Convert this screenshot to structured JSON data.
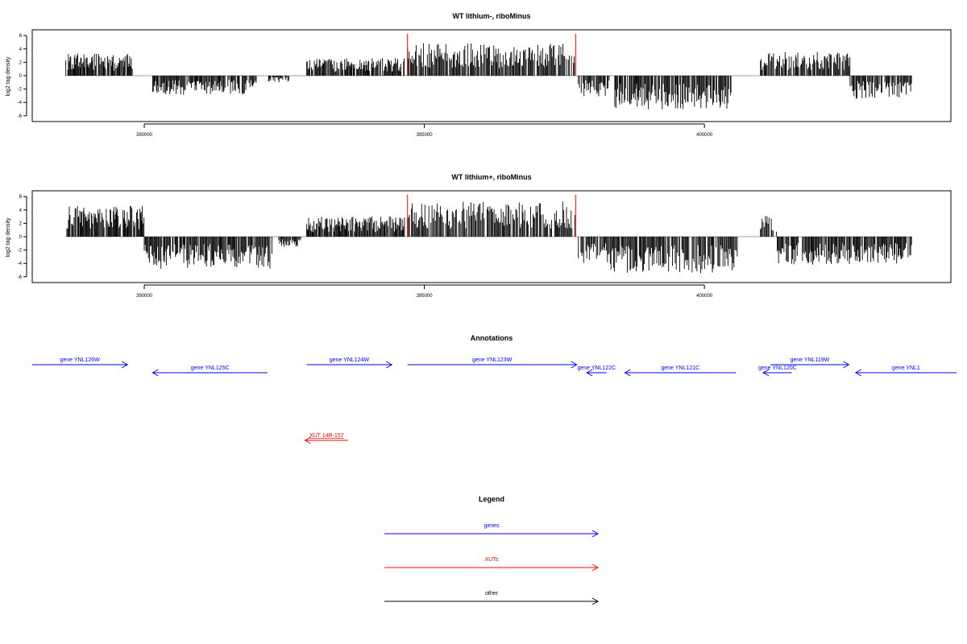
{
  "colors": {
    "gene": "#0000ff",
    "xut": "#ff0000",
    "other": "#000000",
    "bar": "#000000",
    "boundary": "#ff0000",
    "baseline": "#a0a0a0"
  },
  "chart_data": [
    {
      "type": "bar",
      "title": "WT lithium-, riboMinus",
      "ylabel": "log2 tag density",
      "xlim": [
        388000,
        404400
      ],
      "ylim": [
        -6.5,
        6.5
      ],
      "xticks": [
        390000,
        395000,
        400000
      ],
      "yticks": [
        -6,
        -4,
        -2,
        0,
        2,
        4,
        6
      ],
      "grid": false,
      "boundaries": [
        394700,
        397700
      ],
      "segments": [
        {
          "start": 388600,
          "end": 389800,
          "sign": 1,
          "amp": 3.0
        },
        {
          "start": 390150,
          "end": 392000,
          "sign": -1,
          "amp": 2.6
        },
        {
          "start": 392200,
          "end": 392600,
          "sign": -1,
          "amp": 0.9
        },
        {
          "start": 392900,
          "end": 394650,
          "sign": 1,
          "amp": 2.4
        },
        {
          "start": 394700,
          "end": 397700,
          "sign": 1,
          "amp": 4.5
        },
        {
          "start": 397750,
          "end": 398300,
          "sign": -1,
          "amp": 2.8
        },
        {
          "start": 398400,
          "end": 400500,
          "sign": -1,
          "amp": 4.6
        },
        {
          "start": 401000,
          "end": 402600,
          "sign": 1,
          "amp": 3.3
        },
        {
          "start": 402600,
          "end": 403700,
          "sign": -1,
          "amp": 3.2
        }
      ]
    },
    {
      "type": "bar",
      "title": "WT lithium+, riboMinus",
      "ylabel": "log2 tag density",
      "xlim": [
        388000,
        404400
      ],
      "ylim": [
        -6.5,
        6.5
      ],
      "xticks": [
        390000,
        395000,
        400000
      ],
      "yticks": [
        -6,
        -4,
        -2,
        0,
        2,
        4,
        6
      ],
      "grid": false,
      "boundaries": [
        394700,
        397700
      ],
      "segments": [
        {
          "start": 388600,
          "end": 390000,
          "sign": 1,
          "amp": 4.2
        },
        {
          "start": 390000,
          "end": 392300,
          "sign": -1,
          "amp": 4.4
        },
        {
          "start": 392400,
          "end": 392800,
          "sign": -1,
          "amp": 1.4
        },
        {
          "start": 392900,
          "end": 394650,
          "sign": 1,
          "amp": 2.8
        },
        {
          "start": 394700,
          "end": 397700,
          "sign": 1,
          "amp": 4.8
        },
        {
          "start": 397750,
          "end": 398300,
          "sign": -1,
          "amp": 3.6
        },
        {
          "start": 398300,
          "end": 400600,
          "sign": -1,
          "amp": 5.0
        },
        {
          "start": 401000,
          "end": 401300,
          "sign": 1,
          "amp": 3.0
        },
        {
          "start": 401300,
          "end": 403700,
          "sign": -1,
          "amp": 3.8
        }
      ]
    }
  ],
  "annotations": {
    "title": "Annotations",
    "genes": [
      {
        "label": "gene YNL126W",
        "start": 388000,
        "end": 389700,
        "strand": "+",
        "row": 0
      },
      {
        "label": "gene YNL125C",
        "start": 390150,
        "end": 392200,
        "strand": "-",
        "row": 1
      },
      {
        "label": "gene YNL124W",
        "start": 392900,
        "end": 394420,
        "strand": "+",
        "row": 0
      },
      {
        "label": "gene YNL123W",
        "start": 394700,
        "end": 397720,
        "strand": "+",
        "row": 0
      },
      {
        "label": "gene YNL122C",
        "start": 397900,
        "end": 398250,
        "strand": "-",
        "row": 1
      },
      {
        "label": "gene YNL121C",
        "start": 398580,
        "end": 400560,
        "strand": "-",
        "row": 1
      },
      {
        "label": "gene YNL120C",
        "start": 401050,
        "end": 401560,
        "strand": "-",
        "row": 1
      },
      {
        "label": "gene YNL119W",
        "start": 401180,
        "end": 402580,
        "strand": "+",
        "row": 0
      },
      {
        "label": "gene YNL1",
        "start": 402700,
        "end": 404500,
        "strand": "-",
        "row": 1
      }
    ],
    "xuts": [
      {
        "label": "XUT 14R-157",
        "start": 392870,
        "end": 393640,
        "strand": "-",
        "row": 2
      }
    ]
  },
  "legend": {
    "title": "Legend",
    "items": [
      {
        "label": "genes",
        "kind": "gene"
      },
      {
        "label": "XUTs",
        "kind": "xut"
      },
      {
        "label": "other",
        "kind": "other"
      }
    ]
  }
}
